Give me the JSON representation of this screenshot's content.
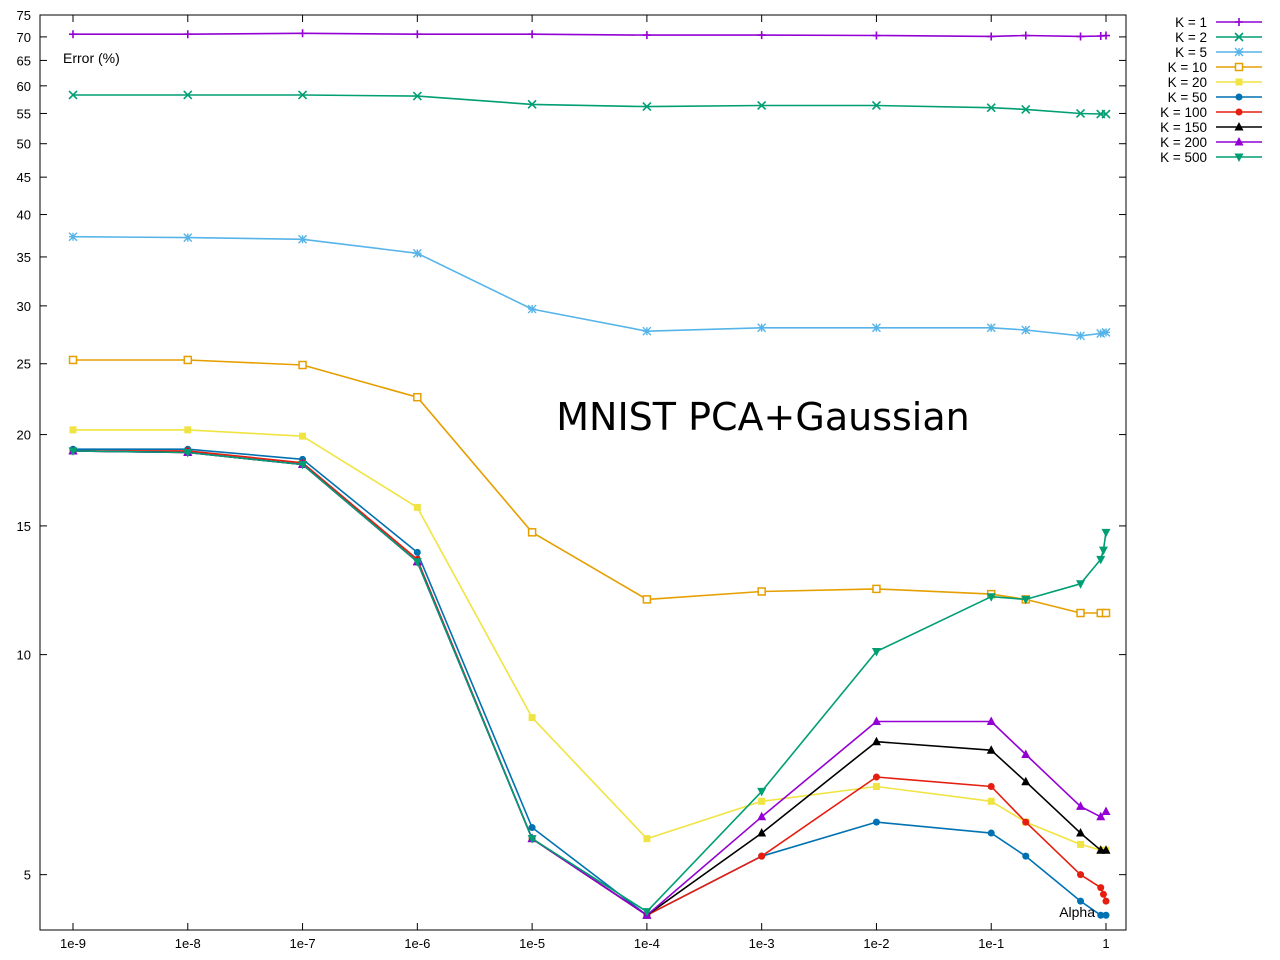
{
  "chart_data": {
    "type": "line",
    "title": "MNIST PCA+Gaussian",
    "ylabel": "Error (%)",
    "xlabel": "Alpha",
    "x_scale": "log",
    "y_scale": "log",
    "xlim": [
      1e-09,
      1
    ],
    "ylim": [
      4.2,
      75
    ],
    "x_ticks": [
      {
        "value": 1e-09,
        "label": "1e-9"
      },
      {
        "value": 1e-08,
        "label": "1e-8"
      },
      {
        "value": 1e-07,
        "label": "1e-7"
      },
      {
        "value": 1e-06,
        "label": "1e-6"
      },
      {
        "value": 1e-05,
        "label": "1e-5"
      },
      {
        "value": 0.0001,
        "label": "1e-4"
      },
      {
        "value": 0.001,
        "label": "1e-3"
      },
      {
        "value": 0.01,
        "label": "1e-2"
      },
      {
        "value": 0.1,
        "label": "1e-1"
      },
      {
        "value": 1,
        "label": "1"
      }
    ],
    "y_ticks": [
      {
        "value": 5,
        "label": "5"
      },
      {
        "value": 10,
        "label": "10"
      },
      {
        "value": 15,
        "label": "15"
      },
      {
        "value": 20,
        "label": "20"
      },
      {
        "value": 25,
        "label": "25"
      },
      {
        "value": 30,
        "label": "30"
      },
      {
        "value": 35,
        "label": "35"
      },
      {
        "value": 40,
        "label": "40"
      },
      {
        "value": 45,
        "label": "45"
      },
      {
        "value": 50,
        "label": "50"
      },
      {
        "value": 55,
        "label": "55"
      },
      {
        "value": 60,
        "label": "60"
      },
      {
        "value": 65,
        "label": "65"
      },
      {
        "value": 70,
        "label": "70"
      },
      {
        "value": 75,
        "label": "75"
      }
    ],
    "grid": false,
    "legend_position": "outside top-right",
    "series": [
      {
        "name": "K = 1",
        "color": "#9400d3",
        "marker": "plus",
        "x": [
          1e-09,
          1e-08,
          1e-07,
          1e-06,
          1e-05,
          0.0001,
          0.001,
          0.01,
          0.1,
          0.2,
          0.6,
          0.9,
          1
        ],
        "y": [
          70.6,
          70.6,
          70.8,
          70.6,
          70.6,
          70.4,
          70.4,
          70.3,
          70.1,
          70.3,
          70.1,
          70.2,
          70.3
        ]
      },
      {
        "name": "K = 2",
        "color": "#009e73",
        "marker": "x",
        "x": [
          1e-09,
          1e-08,
          1e-07,
          1e-06,
          1e-05,
          0.0001,
          0.001,
          0.01,
          0.1,
          0.2,
          0.6,
          0.9,
          1
        ],
        "y": [
          58.3,
          58.3,
          58.3,
          58.1,
          56.6,
          56.2,
          56.4,
          56.4,
          56.0,
          55.7,
          55.0,
          54.9,
          54.9
        ]
      },
      {
        "name": "K = 5",
        "color": "#56b4e9",
        "marker": "star",
        "x": [
          1e-09,
          1e-08,
          1e-07,
          1e-06,
          1e-05,
          0.0001,
          0.001,
          0.01,
          0.1,
          0.2,
          0.6,
          0.9,
          1
        ],
        "y": [
          37.3,
          37.2,
          37.0,
          35.4,
          29.7,
          27.7,
          28.0,
          28.0,
          28.0,
          27.8,
          27.3,
          27.5,
          27.6
        ]
      },
      {
        "name": "K = 10",
        "color": "#e69f00",
        "marker": "open-square",
        "x": [
          1e-09,
          1e-08,
          1e-07,
          1e-06,
          1e-05,
          0.0001,
          0.001,
          0.01,
          0.1,
          0.2,
          0.6,
          0.9,
          1
        ],
        "y": [
          25.3,
          25.3,
          24.9,
          22.5,
          14.7,
          11.9,
          12.2,
          12.3,
          12.1,
          11.9,
          11.4,
          11.4,
          11.4
        ]
      },
      {
        "name": "K = 20",
        "color": "#f0e442",
        "marker": "filled-square",
        "x": [
          1e-09,
          1e-08,
          1e-07,
          1e-06,
          1e-05,
          0.0001,
          0.001,
          0.01,
          0.1,
          0.2,
          0.6,
          0.9,
          1
        ],
        "y": [
          20.3,
          20.3,
          19.9,
          15.9,
          8.2,
          5.6,
          6.3,
          6.6,
          6.3,
          5.9,
          5.5,
          5.4,
          5.4
        ]
      },
      {
        "name": "K = 50",
        "color": "#0072b2",
        "marker": "filled-circle",
        "x": [
          1e-09,
          1e-08,
          1e-07,
          1e-06,
          1e-05,
          0.0001,
          0.001,
          0.01,
          0.1,
          0.2,
          0.6,
          0.9,
          1
        ],
        "y": [
          19.1,
          19.1,
          18.5,
          13.8,
          5.8,
          4.4,
          5.3,
          5.9,
          5.7,
          5.3,
          4.6,
          4.4,
          4.4
        ]
      },
      {
        "name": "K = 100",
        "color": "#e51e10",
        "marker": "filled-circle",
        "x": [
          1e-09,
          1e-08,
          1e-07,
          1e-06,
          1e-05,
          0.0001,
          0.001,
          0.01,
          0.1,
          0.2,
          0.6,
          0.9,
          0.95,
          1
        ],
        "y": [
          19.0,
          19.0,
          18.3,
          13.5,
          5.6,
          4.4,
          5.3,
          6.8,
          6.6,
          5.9,
          5.0,
          4.8,
          4.7,
          4.6
        ]
      },
      {
        "name": "K = 150",
        "color": "#000000",
        "marker": "filled-triangle",
        "x": [
          1e-09,
          1e-08,
          1e-07,
          1e-06,
          1e-05,
          0.0001,
          0.001,
          0.01,
          0.1,
          0.2,
          0.6,
          0.9,
          1
        ],
        "y": [
          19.0,
          18.9,
          18.2,
          13.4,
          5.6,
          4.4,
          5.7,
          7.6,
          7.4,
          6.7,
          5.7,
          5.4,
          5.4
        ]
      },
      {
        "name": "K = 200",
        "color": "#9400d3",
        "marker": "filled-triangle",
        "x": [
          1e-09,
          1e-08,
          1e-07,
          1e-06,
          1e-05,
          0.0001,
          0.001,
          0.01,
          0.1,
          0.2,
          0.6,
          0.9,
          1
        ],
        "y": [
          19.0,
          18.9,
          18.2,
          13.4,
          5.6,
          4.4,
          6.0,
          8.1,
          8.1,
          7.3,
          6.2,
          6.0,
          6.1
        ]
      },
      {
        "name": "K = 500",
        "color": "#009e73",
        "marker": "filled-triangle-down",
        "x": [
          1e-09,
          1e-08,
          1e-07,
          1e-06,
          1e-05,
          0.0001,
          0.001,
          0.01,
          0.1,
          0.2,
          0.6,
          0.9,
          0.95,
          1
        ],
        "y": [
          19.0,
          18.9,
          18.2,
          13.4,
          5.6,
          4.45,
          6.5,
          10.1,
          12.0,
          11.9,
          12.5,
          13.5,
          13.9,
          14.7
        ]
      }
    ]
  }
}
